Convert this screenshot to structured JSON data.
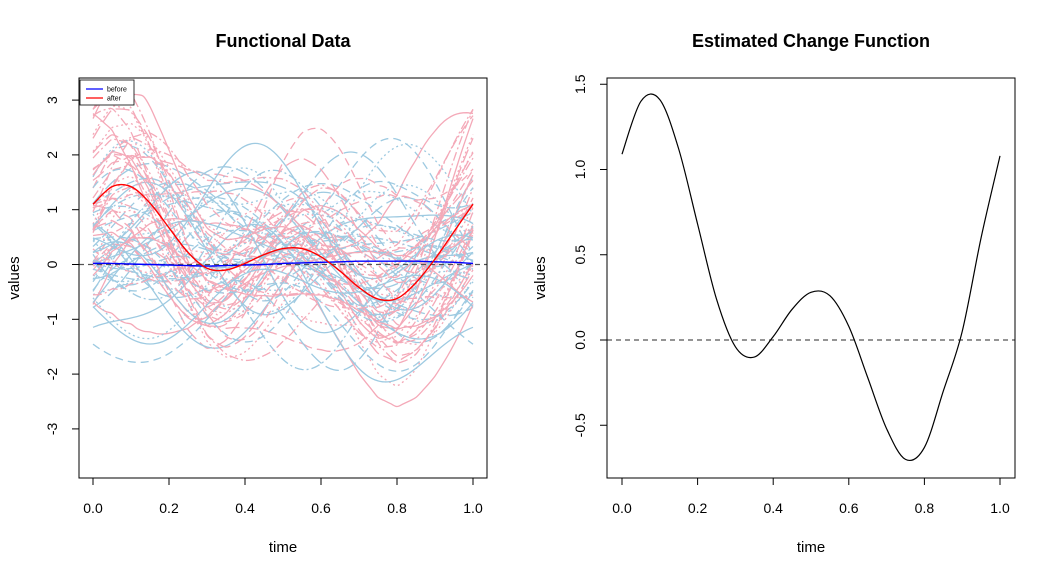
{
  "colors": {
    "before_mean": "#0000ff",
    "after_mean": "#ff0000",
    "before_curves": "#9ecae1",
    "after_curves": "#f4a9b8",
    "axis": "#000000",
    "reference_line": "#555555"
  },
  "chart_data": [
    {
      "type": "line",
      "title": "Functional Data",
      "xlabel": "time",
      "ylabel": "values",
      "xlim": [
        0,
        1
      ],
      "ylim": [
        -3.8,
        3.4
      ],
      "xticks": [
        0,
        0.2,
        0.4,
        0.6,
        0.8,
        1
      ],
      "xtick_labels": [
        "0.0",
        "0.2",
        "0.4",
        "0.6",
        "0.8",
        "1.0"
      ],
      "yticks": [
        -3,
        -2,
        -1,
        0,
        1,
        2,
        3
      ],
      "ytick_labels": [
        "-3",
        "-2",
        "-1",
        "0",
        "1",
        "2",
        "3"
      ],
      "grid": false,
      "legend": {
        "position": "top-left",
        "entries": [
          "before",
          "after"
        ]
      },
      "reference_line_y": 0,
      "x": [
        0,
        0.05,
        0.1,
        0.15,
        0.2,
        0.25,
        0.3,
        0.35,
        0.4,
        0.45,
        0.5,
        0.55,
        0.6,
        0.65,
        0.7,
        0.75,
        0.8,
        0.85,
        0.9,
        0.95,
        1
      ],
      "series": [
        {
          "name": "before",
          "role": "mean",
          "values": [
            0.02,
            0.02,
            0.01,
            0.0,
            -0.01,
            -0.02,
            -0.03,
            -0.02,
            -0.01,
            0.0,
            0.02,
            0.03,
            0.04,
            0.05,
            0.06,
            0.06,
            0.06,
            0.06,
            0.05,
            0.04,
            0.02
          ]
        },
        {
          "name": "after",
          "role": "mean",
          "values": [
            1.1,
            1.42,
            1.42,
            1.12,
            0.67,
            0.22,
            -0.07,
            -0.1,
            0.02,
            0.18,
            0.29,
            0.29,
            0.14,
            -0.12,
            -0.42,
            -0.63,
            -0.62,
            -0.33,
            0.1,
            0.6,
            1.1
          ]
        }
      ]
    },
    {
      "type": "line",
      "title": "Estimated Change Function",
      "xlabel": "time",
      "ylabel": "values",
      "xlim": [
        0,
        1
      ],
      "ylim": [
        -0.8,
        1.5
      ],
      "xticks": [
        0,
        0.2,
        0.4,
        0.6,
        0.8,
        1
      ],
      "xtick_labels": [
        "0.0",
        "0.2",
        "0.4",
        "0.6",
        "0.8",
        "1.0"
      ],
      "yticks": [
        -0.5,
        0,
        0.5,
        1,
        1.5
      ],
      "ytick_labels": [
        "-0.5",
        "0.0",
        "0.5",
        "1.0",
        "1.5"
      ],
      "grid": false,
      "reference_line_y": 0,
      "x": [
        0,
        0.05,
        0.1,
        0.15,
        0.2,
        0.25,
        0.3,
        0.35,
        0.4,
        0.45,
        0.5,
        0.55,
        0.6,
        0.65,
        0.7,
        0.75,
        0.8,
        0.85,
        0.9,
        0.95,
        1
      ],
      "series": [
        {
          "values": [
            1.09,
            1.4,
            1.41,
            1.12,
            0.68,
            0.24,
            -0.04,
            -0.1,
            0.02,
            0.18,
            0.28,
            0.26,
            0.08,
            -0.22,
            -0.52,
            -0.7,
            -0.63,
            -0.3,
            0.05,
            0.6,
            1.08
          ]
        }
      ]
    }
  ]
}
